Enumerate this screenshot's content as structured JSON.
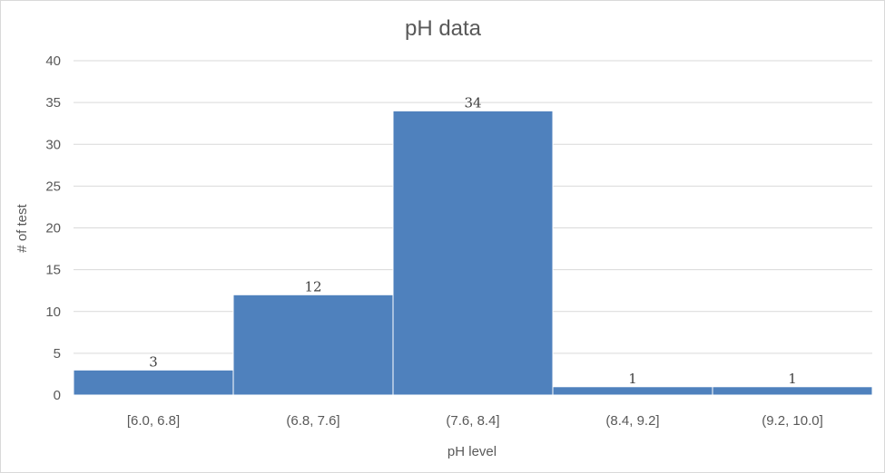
{
  "chart_data": {
    "type": "bar",
    "title": "pH data",
    "xlabel": "pH level",
    "ylabel": "# of test",
    "categories": [
      "[6.0, 6.8]",
      "(6.8, 7.6]",
      "(7.6, 8.4]",
      "(8.4, 9.2]",
      "(9.2, 10.0]"
    ],
    "values": [
      3,
      12,
      34,
      1,
      1
    ],
    "ylim": [
      0,
      40
    ],
    "yticks": [
      0,
      5,
      10,
      15,
      20,
      25,
      30,
      35,
      40
    ],
    "grid": true,
    "legend": "none",
    "bar_color": "#4f81bd",
    "data_labels": true
  }
}
